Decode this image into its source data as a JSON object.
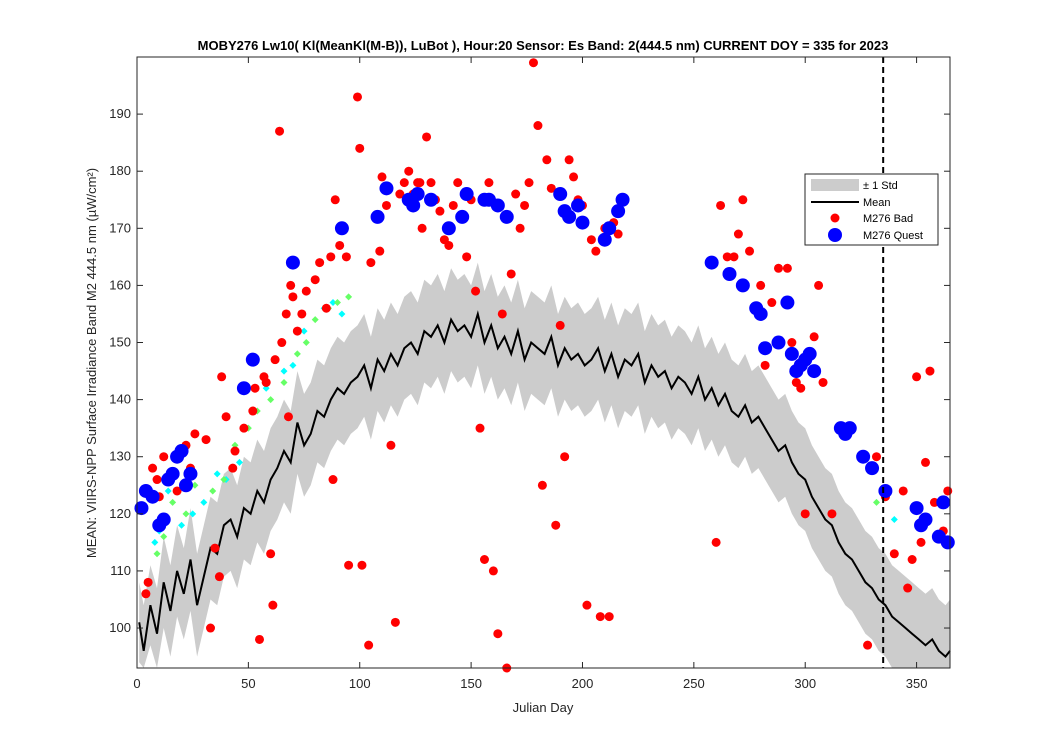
{
  "chart_data": {
    "type": "scatter",
    "title": "MOBY276   Lw10( Kl(MeanKl(M-B)), LuBot ),    Hour:20 Sensor: Es Band: 2(444.5 nm)   CURRENT DOY = 335 for 2023",
    "xlabel": "Julian Day",
    "ylabel": "MEAN: VIIRS-NPP Surface Irradiance Band M2 444.5 nm (µW/cm²)",
    "xlim": [
      0,
      365
    ],
    "ylim": [
      93,
      200
    ],
    "xticks": [
      0,
      50,
      100,
      150,
      200,
      250,
      300,
      350
    ],
    "yticks": [
      100,
      110,
      120,
      130,
      140,
      150,
      160,
      170,
      180,
      190
    ],
    "current_doy": 335,
    "legend": {
      "position": "upper-right",
      "entries": [
        "± 1 Std",
        "Mean",
        "M276 Bad",
        "M276 Quest"
      ]
    },
    "colors": {
      "std_band": "#cccccc",
      "mean": "#000000",
      "bad": "#ff0000",
      "quest": "#0000ff",
      "cyan": "#00ffff",
      "green": "#66ff66"
    },
    "mean": {
      "name": "Mean",
      "x": [
        1,
        3,
        6,
        9,
        12,
        15,
        18,
        21,
        24,
        27,
        30,
        33,
        36,
        39,
        42,
        45,
        48,
        51,
        54,
        57,
        60,
        63,
        66,
        69,
        72,
        75,
        78,
        81,
        84,
        87,
        90,
        93,
        96,
        99,
        102,
        105,
        108,
        111,
        114,
        117,
        120,
        123,
        126,
        129,
        132,
        135,
        138,
        141,
        144,
        147,
        150,
        153,
        156,
        159,
        162,
        165,
        168,
        171,
        174,
        177,
        180,
        183,
        186,
        189,
        192,
        195,
        198,
        201,
        204,
        207,
        210,
        213,
        216,
        219,
        222,
        225,
        228,
        231,
        234,
        237,
        240,
        243,
        246,
        249,
        252,
        255,
        258,
        261,
        264,
        267,
        270,
        273,
        276,
        279,
        282,
        285,
        288,
        291,
        294,
        297,
        300,
        303,
        306,
        309,
        312,
        315,
        318,
        321,
        324,
        327,
        330,
        333,
        336,
        339,
        342,
        345,
        348,
        351,
        354,
        357,
        360,
        363,
        365
      ],
      "y": [
        101,
        96,
        104,
        99,
        108,
        103,
        110,
        106,
        112,
        104,
        109,
        114,
        113,
        118,
        119,
        116,
        121,
        120,
        124,
        122,
        126,
        128,
        131,
        129,
        136,
        132,
        134,
        138,
        137,
        140,
        142,
        141,
        143,
        144,
        146,
        142,
        147,
        145,
        148,
        146,
        149,
        150,
        148,
        152,
        151,
        153,
        150,
        154,
        152,
        153,
        151,
        155,
        150,
        153,
        149,
        151,
        148,
        152,
        147,
        150,
        149,
        148,
        151,
        146,
        149,
        147,
        148,
        146,
        147,
        149,
        145,
        148,
        144,
        147,
        146,
        148,
        143,
        146,
        144,
        145,
        142,
        144,
        143,
        141,
        144,
        140,
        142,
        139,
        141,
        138,
        137,
        139,
        136,
        137,
        135,
        133,
        131,
        132,
        129,
        127,
        126,
        123,
        121,
        119,
        118,
        115,
        113,
        112,
        110,
        108,
        107,
        105,
        104,
        102,
        101,
        100,
        99,
        98,
        97,
        98,
        96,
        95,
        96
      ]
    },
    "std_band": {
      "name": "± 1 Std",
      "x": [
        1,
        3,
        6,
        9,
        12,
        15,
        18,
        21,
        24,
        27,
        30,
        33,
        36,
        39,
        42,
        45,
        48,
        51,
        54,
        57,
        60,
        63,
        66,
        69,
        72,
        75,
        78,
        81,
        84,
        87,
        90,
        93,
        96,
        99,
        102,
        105,
        108,
        111,
        114,
        117,
        120,
        123,
        126,
        129,
        132,
        135,
        138,
        141,
        144,
        147,
        150,
        153,
        156,
        159,
        162,
        165,
        168,
        171,
        174,
        177,
        180,
        183,
        186,
        189,
        192,
        195,
        198,
        201,
        204,
        207,
        210,
        213,
        216,
        219,
        222,
        225,
        228,
        231,
        234,
        237,
        240,
        243,
        246,
        249,
        252,
        255,
        258,
        261,
        264,
        267,
        270,
        273,
        276,
        279,
        282,
        285,
        288,
        291,
        294,
        297,
        300,
        303,
        306,
        309,
        312,
        315,
        318,
        321,
        324,
        327,
        330,
        333,
        336,
        339,
        342,
        345,
        348,
        351,
        354,
        357,
        360,
        363,
        365
      ],
      "upper": [
        108,
        104,
        111,
        107,
        116,
        111,
        118,
        114,
        121,
        113,
        118,
        123,
        122,
        127,
        128,
        125,
        130,
        129,
        133,
        131,
        135,
        137,
        140,
        138,
        145,
        141,
        143,
        147,
        146,
        149,
        151,
        150,
        152,
        153,
        155,
        151,
        156,
        154,
        157,
        155,
        158,
        159,
        157,
        161,
        160,
        162,
        159,
        163,
        161,
        162,
        160,
        164,
        159,
        162,
        158,
        160,
        157,
        161,
        156,
        159,
        158,
        157,
        160,
        155,
        158,
        156,
        157,
        155,
        156,
        158,
        154,
        157,
        153,
        156,
        155,
        157,
        152,
        155,
        153,
        154,
        151,
        153,
        152,
        150,
        153,
        149,
        151,
        148,
        150,
        147,
        146,
        148,
        145,
        146,
        144,
        142,
        140,
        141,
        138,
        136,
        135,
        132,
        130,
        128,
        127,
        124,
        122,
        121,
        119,
        117,
        116,
        114,
        113,
        111,
        110,
        109,
        108,
        107,
        106,
        107,
        105,
        104,
        105
      ],
      "lower": [
        94,
        93,
        97,
        93,
        100,
        95,
        102,
        98,
        103,
        95,
        100,
        105,
        104,
        109,
        110,
        107,
        112,
        111,
        115,
        113,
        117,
        119,
        122,
        120,
        127,
        123,
        125,
        129,
        128,
        131,
        133,
        132,
        134,
        135,
        137,
        133,
        138,
        136,
        139,
        137,
        140,
        141,
        139,
        143,
        142,
        144,
        141,
        145,
        143,
        144,
        142,
        146,
        141,
        144,
        140,
        142,
        139,
        143,
        138,
        141,
        140,
        139,
        142,
        137,
        140,
        138,
        139,
        137,
        138,
        140,
        136,
        139,
        135,
        138,
        137,
        139,
        134,
        137,
        135,
        136,
        133,
        135,
        134,
        132,
        135,
        131,
        133,
        130,
        132,
        129,
        128,
        130,
        127,
        128,
        126,
        124,
        122,
        123,
        120,
        118,
        117,
        114,
        112,
        110,
        109,
        106,
        104,
        103,
        101,
        99,
        98,
        96,
        95,
        93,
        93,
        93,
        93,
        93,
        93,
        93,
        93,
        93,
        93
      ]
    },
    "bad": {
      "name": "M276 Bad",
      "x": [
        4,
        5,
        7,
        9,
        10,
        12,
        14,
        18,
        22,
        24,
        26,
        31,
        33,
        35,
        37,
        38,
        40,
        43,
        44,
        48,
        52,
        53,
        55,
        57,
        58,
        60,
        61,
        62,
        64,
        65,
        67,
        68,
        69,
        70,
        72,
        74,
        76,
        80,
        82,
        85,
        87,
        88,
        89,
        91,
        93,
        94,
        95,
        99,
        100,
        101,
        104,
        105,
        108,
        109,
        110,
        112,
        114,
        116,
        118,
        120,
        122,
        124,
        126,
        127,
        128,
        130,
        132,
        134,
        136,
        138,
        140,
        142,
        144,
        148,
        150,
        152,
        154,
        156,
        158,
        160,
        162,
        164,
        166,
        168,
        170,
        172,
        174,
        176,
        178,
        180,
        182,
        184,
        186,
        188,
        190,
        192,
        194,
        196,
        198,
        200,
        202,
        204,
        206,
        208,
        210,
        212,
        214,
        216,
        260,
        262,
        265,
        268,
        270,
        272,
        275,
        280,
        282,
        285,
        288,
        292,
        294,
        296,
        298,
        300,
        304,
        306,
        308,
        312,
        315,
        328,
        332,
        336,
        340,
        344,
        346,
        348,
        350,
        352,
        354,
        356,
        358,
        360,
        362,
        364
      ],
      "y": [
        106,
        108,
        128,
        126,
        123,
        130,
        126,
        124,
        132,
        128,
        134,
        133,
        100,
        114,
        109,
        144,
        137,
        128,
        131,
        135,
        138,
        142,
        98,
        144,
        143,
        113,
        104,
        147,
        187,
        150,
        155,
        137,
        160,
        158,
        152,
        155,
        159,
        161,
        164,
        156,
        165,
        126,
        175,
        167,
        170,
        165,
        111,
        193,
        184,
        111,
        97,
        164,
        172,
        166,
        179,
        174,
        132,
        101,
        176,
        178,
        180,
        176,
        178,
        178,
        170,
        186,
        178,
        175,
        173,
        168,
        167,
        174,
        178,
        165,
        175,
        159,
        135,
        112,
        178,
        110,
        99,
        155,
        93,
        162,
        176,
        170,
        174,
        178,
        199,
        188,
        125,
        182,
        177,
        118,
        153,
        130,
        182,
        179,
        175,
        174,
        104,
        168,
        166,
        102,
        170,
        102,
        171,
        169,
        115,
        174,
        165,
        165,
        169,
        175,
        166,
        160,
        146,
        157,
        163,
        163,
        150,
        143,
        142,
        120,
        151,
        160,
        143,
        120,
        135,
        97,
        130,
        123,
        113,
        124,
        107,
        112,
        144,
        115,
        129,
        145,
        122,
        116,
        117,
        124
      ]
    },
    "quest": {
      "name": "M276 Quest",
      "x": [
        2,
        4,
        7,
        10,
        12,
        14,
        16,
        18,
        20,
        22,
        24,
        48,
        52,
        70,
        92,
        108,
        112,
        122,
        124,
        126,
        132,
        140,
        146,
        148,
        156,
        158,
        162,
        166,
        190,
        192,
        194,
        198,
        200,
        210,
        212,
        216,
        218,
        258,
        266,
        272,
        278,
        280,
        282,
        288,
        292,
        294,
        296,
        298,
        300,
        302,
        304,
        316,
        318,
        320,
        326,
        330,
        336,
        350,
        352,
        354,
        360,
        362,
        364
      ],
      "y": [
        121,
        124,
        123,
        118,
        119,
        126,
        127,
        130,
        131,
        125,
        127,
        142,
        147,
        164,
        170,
        172,
        177,
        175,
        174,
        176,
        175,
        170,
        172,
        176,
        175,
        175,
        174,
        172,
        176,
        173,
        172,
        174,
        171,
        168,
        170,
        173,
        175,
        164,
        162,
        160,
        156,
        155,
        149,
        150,
        157,
        148,
        145,
        146,
        147,
        148,
        145,
        135,
        134,
        135,
        130,
        128,
        124,
        121,
        118,
        119,
        116,
        122,
        115
      ]
    },
    "cyan": {
      "x": [
        8,
        10,
        14,
        20,
        25,
        30,
        36,
        40,
        46,
        58,
        66,
        70,
        75,
        84,
        88,
        92,
        340
      ],
      "y": [
        115,
        117,
        124,
        118,
        120,
        122,
        127,
        126,
        129,
        142,
        145,
        146,
        152,
        156,
        157,
        155,
        119
      ]
    },
    "green": {
      "x": [
        9,
        12,
        16,
        22,
        26,
        34,
        39,
        44,
        50,
        54,
        60,
        66,
        72,
        76,
        80,
        86,
        90,
        95,
        332
      ],
      "y": [
        113,
        116,
        122,
        120,
        125,
        124,
        126,
        132,
        135,
        138,
        140,
        143,
        148,
        150,
        154,
        156,
        157,
        158,
        122
      ]
    }
  }
}
